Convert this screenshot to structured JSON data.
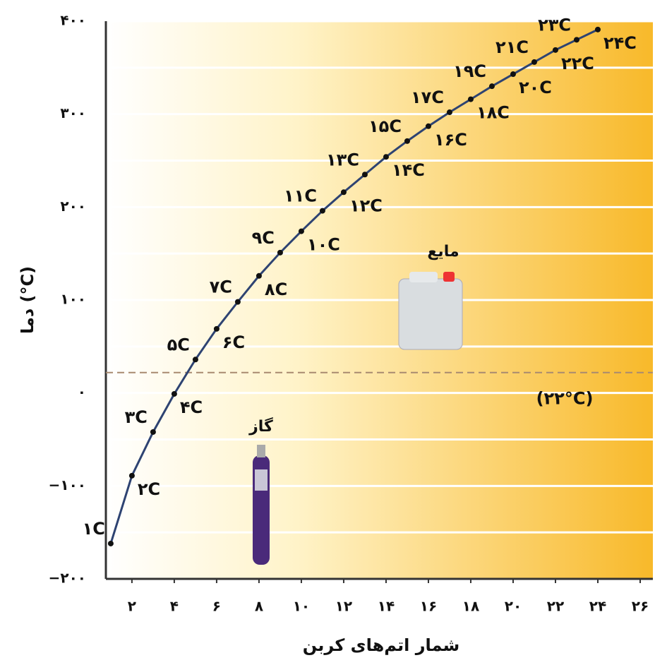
{
  "chart_data": {
    "type": "line",
    "x_label": "شمار اتم‌های کربن",
    "y_label": "دما (°C)",
    "x": [
      1,
      2,
      3,
      4,
      5,
      6,
      7,
      8,
      9,
      10,
      11,
      12,
      13,
      14,
      15,
      16,
      17,
      18,
      19,
      20,
      21,
      22,
      23,
      24
    ],
    "series": [
      {
        "color": "#2e4372",
        "values": [
          -162,
          -89,
          -42,
          -1,
          36,
          69,
          98,
          126,
          151,
          174,
          196,
          216,
          235,
          254,
          271,
          287,
          302,
          316,
          330,
          343,
          356,
          369,
          380,
          391
        ],
        "point_labels": [
          "۱C",
          "۲C",
          "۳C",
          "۴C",
          "۵C",
          "۶C",
          "۷C",
          "۸C",
          "۹C",
          "۱۰C",
          "۱۱C",
          "۱۲C",
          "۱۳C",
          "۱۴C",
          "۱۵C",
          "۱۶C",
          "۱۷C",
          "۱۸C",
          "۱۹C",
          "۲۰C",
          "۲۱C",
          "۲۲C",
          "۲۳C",
          "۲۴C"
        ]
      }
    ],
    "xlim": [
      0.77,
      26.6
    ],
    "ylim": [
      -200,
      400
    ],
    "xticks": [
      {
        "value": 2,
        "label": "۲"
      },
      {
        "value": 4,
        "label": "۴"
      },
      {
        "value": 6,
        "label": "۶"
      },
      {
        "value": 8,
        "label": "۸"
      },
      {
        "value": 10,
        "label": "۱۰"
      },
      {
        "value": 12,
        "label": "۱۲"
      },
      {
        "value": 14,
        "label": "۱۴"
      },
      {
        "value": 16,
        "label": "۱۶"
      },
      {
        "value": 18,
        "label": "۱۸"
      },
      {
        "value": 20,
        "label": "۲۰"
      },
      {
        "value": 22,
        "label": "۲۲"
      },
      {
        "value": 24,
        "label": "۲۴"
      },
      {
        "value": 26,
        "label": "۲۶"
      }
    ],
    "yticks": [
      {
        "value": -200,
        "label": "−۲۰۰"
      },
      {
        "value": -100,
        "label": "−۱۰۰"
      },
      {
        "value": 0,
        "label": "۰"
      },
      {
        "value": 100,
        "label": "۱۰۰"
      },
      {
        "value": 200,
        "label": "۲۰۰"
      },
      {
        "value": 300,
        "label": "۳۰۰"
      },
      {
        "value": 400,
        "label": "۴۰۰"
      }
    ],
    "minor_yticks": [
      -150,
      -50,
      50,
      150,
      250,
      350
    ],
    "grid": true,
    "reference_line": {
      "value": 22,
      "label": "(۲۲°C)",
      "color": "#a88a70"
    },
    "annotations": [
      {
        "text": "مایع"
      },
      {
        "text": "گاز"
      }
    ]
  }
}
